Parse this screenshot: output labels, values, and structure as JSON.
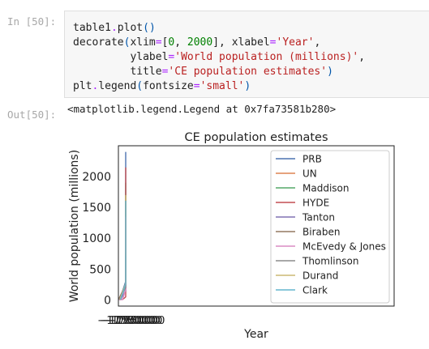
{
  "cell": {
    "in_prompt": "In [50]:",
    "out_prompt": "Out[50]:",
    "code": {
      "line1": {
        "obj": "table1",
        "dot": ".",
        "fn": "plot",
        "open": "(",
        "close": ")"
      },
      "line2": {
        "fn": "decorate",
        "open": "(",
        "kw1": "xlim",
        "eq1": "=",
        "lb": "[",
        "n1": "0",
        "comma": ", ",
        "n2": "2000",
        "rb": "]",
        "sep1": ", ",
        "kw2": "xlabel",
        "eq2": "=",
        "s2": "'Year'",
        "sep2": ","
      },
      "line3": {
        "indent": "         ",
        "kw": "ylabel",
        "eq": "=",
        "s": "'World population (millions)'",
        "sep": ","
      },
      "line4": {
        "indent": "         ",
        "kw": "title",
        "eq": "=",
        "s": "'CE population estimates'",
        "close": ")"
      },
      "line5": {
        "obj": "plt",
        "dot": ".",
        "fn": "legend",
        "open": "(",
        "kw": "fontsize",
        "eq": "=",
        "s": "'small'",
        "close": ")"
      }
    },
    "output_text": "<matplotlib.legend.Legend at 0x7fa73581b280>"
  },
  "chart_data": {
    "type": "line",
    "title": "CE population estimates",
    "xlabel": "Year",
    "ylabel": "World population (millions)",
    "y_ticks": [
      "0",
      "500",
      "1000",
      "1500",
      "2000"
    ],
    "x_tick_text": "−1750000",
    "ylim": [
      -100,
      2500
    ],
    "xlim": [
      -10000,
      2000
    ],
    "legend_position": "upper right",
    "series": [
      {
        "name": "PRB",
        "color": "#4c72b0",
        "x": [
          -8000,
          -1,
          1200,
          1650,
          1750,
          1850,
          1900,
          1950
        ],
        "y": [
          5,
          300,
          450,
          500,
          795,
          1265,
          1656,
          2400
        ]
      },
      {
        "name": "UN",
        "color": "#dd8452",
        "x": [
          1,
          1000,
          1250,
          1500,
          1750,
          1800,
          1850,
          1900,
          1950
        ],
        "y": [
          300,
          310,
          400,
          500,
          791,
          978,
          1262,
          1650,
          1700
        ]
      },
      {
        "name": "Maddison",
        "color": "#55a868",
        "x": [
          1,
          1000,
          1500,
          1600,
          1700,
          1820,
          1870,
          1913,
          1950
        ],
        "y": [
          231,
          268,
          438,
          556,
          603,
          1041,
          1270,
          1791,
          1900
        ]
      },
      {
        "name": "HYDE",
        "color": "#c44e52",
        "x": [
          -10000,
          -5000,
          -1000,
          1,
          1000,
          1500,
          1700,
          1800,
          1900,
          1950
        ],
        "y": [
          2,
          18,
          50,
          188,
          295,
          461,
          603,
          990,
          1650,
          2150
        ]
      },
      {
        "name": "Tanton",
        "color": "#8172b3",
        "x": [
          -10000,
          1,
          1000,
          1500,
          1750
        ],
        "y": [
          4,
          150,
          250,
          425,
          720
        ]
      },
      {
        "name": "Biraben",
        "color": "#937860",
        "x": [
          -10000,
          1,
          1000,
          1500,
          1750
        ],
        "y": [
          1,
          252,
          253,
          461,
          771
        ]
      },
      {
        "name": "McEvedy & Jones",
        "color": "#da8bc3",
        "x": [
          -10000,
          -5000,
          1,
          1000,
          1500,
          1750,
          1900
        ],
        "y": [
          4,
          5,
          170,
          265,
          425,
          720,
          1350
        ]
      },
      {
        "name": "Thomlinson",
        "color": "#8c8c8c",
        "x": [
          -10000,
          1,
          1000,
          1500,
          1750
        ],
        "y": [
          5,
          200,
          275,
          450,
          700
        ]
      },
      {
        "name": "Durand",
        "color": "#ccb974",
        "x": [
          -10000,
          1,
          1000,
          1500,
          1750,
          1900
        ],
        "y": [
          4,
          270,
          300,
          450,
          750,
          1700
        ]
      },
      {
        "name": "Clark",
        "color": "#64b5cd",
        "x": [
          -10000,
          1,
          1000,
          1500,
          1750,
          1900
        ],
        "y": [
          3,
          256,
          280,
          427,
          700,
          1608
        ]
      }
    ]
  }
}
